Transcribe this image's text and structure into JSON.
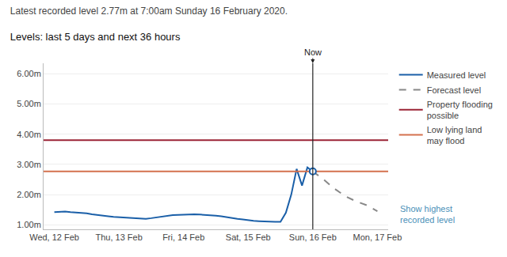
{
  "chart_data": {
    "type": "line",
    "title": "Latest recorded level 2.77m at 7:00am Sunday 16 February 2020.",
    "subtitle": "Levels: last 5 days and next 36 hours",
    "xlim": [
      -4,
      124
    ],
    "xticks": [
      {
        "value": 0,
        "label": "Wed, 12 Feb"
      },
      {
        "value": 24,
        "label": "Thu, 13 Feb"
      },
      {
        "value": 48,
        "label": "Fri, 14 Feb"
      },
      {
        "value": 72,
        "label": "Sat, 15 Feb"
      },
      {
        "value": 96,
        "label": "Sun, 16 Feb"
      },
      {
        "value": 120,
        "label": "Mon, 17 Feb"
      }
    ],
    "ylim": [
      0.85,
      6.35
    ],
    "yticks": [
      {
        "value": 1.0,
        "label": "1.00m"
      },
      {
        "value": 2.0,
        "label": "2.00m"
      },
      {
        "value": 3.0,
        "label": "3.00m"
      },
      {
        "value": 4.0,
        "label": "4.00m"
      },
      {
        "value": 5.0,
        "label": "5.00m"
      },
      {
        "value": 6.0,
        "label": "6.00m"
      }
    ],
    "grid": true,
    "legend": "right",
    "series": [
      {
        "name": "Measured level",
        "color": "#1a5fa8",
        "x": [
          0,
          2,
          4,
          6,
          8,
          10,
          12,
          14,
          16,
          18,
          20,
          22,
          24,
          26,
          28,
          30,
          32,
          34,
          36,
          38,
          40,
          42,
          44,
          46,
          48,
          50,
          52,
          54,
          56,
          58,
          60,
          62,
          64,
          66,
          68,
          70,
          72,
          74,
          76,
          78,
          80,
          82,
          84,
          86,
          88,
          90,
          92,
          94,
          96
        ],
        "values": [
          1.42,
          1.43,
          1.44,
          1.42,
          1.41,
          1.4,
          1.38,
          1.35,
          1.32,
          1.3,
          1.28,
          1.26,
          1.25,
          1.24,
          1.22,
          1.21,
          1.21,
          1.2,
          1.22,
          1.25,
          1.28,
          1.3,
          1.32,
          1.33,
          1.34,
          1.35,
          1.35,
          1.34,
          1.33,
          1.32,
          1.3,
          1.28,
          1.25,
          1.22,
          1.2,
          1.18,
          1.15,
          1.13,
          1.12,
          1.11,
          1.11,
          1.1,
          1.1,
          1.4,
          2.0,
          2.85,
          2.3,
          2.9,
          2.77
        ]
      },
      {
        "name": "Forecast level",
        "color": "#888888",
        "line_style": "dashed",
        "x": [
          96,
          100,
          104,
          108,
          112,
          116,
          120
        ],
        "values": [
          2.77,
          2.5,
          2.2,
          1.95,
          1.78,
          1.65,
          1.45
        ]
      },
      {
        "name": "Property flooding\npossible",
        "type": "hline",
        "color": "#9b2335",
        "values": [
          3.8
        ]
      },
      {
        "name": "Low lying land\nmay flood",
        "type": "hline",
        "color": "#d4714e",
        "values": [
          2.77
        ]
      }
    ],
    "annotations": [
      {
        "text": "Now",
        "x": 96
      },
      {
        "text": "Show highest\nrecorded level",
        "color": "#4a90b8"
      }
    ]
  }
}
